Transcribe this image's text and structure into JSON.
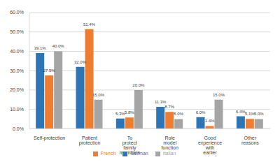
{
  "chart_data": {
    "type": "bar",
    "categories": [
      "Self-protection",
      "Patient protection",
      "To protect family members",
      "Role model function",
      "Good experience with earlier vaccination",
      "Other reasons"
    ],
    "series": [
      {
        "name": "German",
        "color": "#2e75b6",
        "values": [
          39.1,
          32.0,
          5.3,
          11.3,
          6.0,
          6.4
        ],
        "value_labels": [
          "39.1%",
          "32.0%",
          "5.3%",
          "11.3%",
          "6.0%",
          "6.4%"
        ]
      },
      {
        "name": "French",
        "color": "#ed7d31",
        "values": [
          27.5,
          51.4,
          5.8,
          8.7,
          1.4,
          5.1
        ],
        "value_labels": [
          "27.5%",
          "51.4%",
          "5.8%",
          "8.7%",
          "1.4%",
          "5.1%"
        ]
      },
      {
        "name": "Italian",
        "color": "#a5a5a5",
        "values": [
          40.0,
          15.0,
          20.0,
          5.0,
          15.0,
          5.0
        ],
        "value_labels": [
          "40.0%",
          "15.0%",
          "20.0%",
          "5.0%",
          "15.0%",
          "5.0%"
        ]
      }
    ],
    "ylim": [
      0,
      60
    ],
    "yticks": [
      {
        "value": 0,
        "label": "0.0%"
      },
      {
        "value": 10,
        "label": "10.0%"
      },
      {
        "value": 20,
        "label": "20.0%"
      },
      {
        "value": 30,
        "label": "30.0%"
      },
      {
        "value": 40,
        "label": "40.0%"
      },
      {
        "value": 50,
        "label": "50.0%"
      },
      {
        "value": 60,
        "label": "60.0%"
      }
    ],
    "grid": true,
    "legend": "bottom",
    "data_labels": true
  }
}
